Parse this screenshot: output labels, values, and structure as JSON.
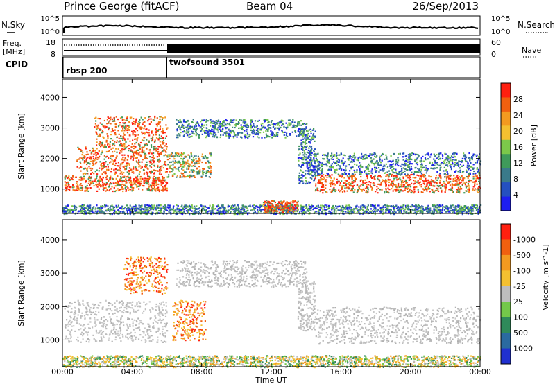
{
  "header": {
    "station": "Prince George (fitACF)",
    "beam": "Beam 04",
    "date": "26/Sep/2013"
  },
  "nsky": {
    "label": "N.Sky",
    "ticks": [
      "10^5",
      "10^0"
    ],
    "right_label": "N.Search",
    "right_ticks": [
      "10^5",
      "10^0"
    ]
  },
  "freq": {
    "label_top": "Freq.",
    "label_unit": "[MHz]",
    "ticks": [
      "18",
      "8"
    ],
    "right_ticks": [
      "60",
      "0"
    ],
    "right_label": "Nave"
  },
  "cpid": {
    "label": "CPID",
    "modes": [
      {
        "name": "rbsp 200",
        "start_hour": 0
      },
      {
        "name": "twofsound 3501",
        "start_hour": 6
      }
    ]
  },
  "chart_data": [
    {
      "type": "heatmap",
      "title": "",
      "xlabel": "Time UT",
      "ylabel": "Slant Range [km]",
      "xlim": [
        0,
        24
      ],
      "ylim": [
        200,
        4600
      ],
      "x_ticks": [
        "00:00",
        "04:00",
        "08:00",
        "12:00",
        "16:00",
        "20:00",
        "00:00"
      ],
      "y_ticks": [
        1000,
        2000,
        3000,
        4000
      ],
      "colorbar": {
        "label": "Power [dB]",
        "ticks": [
          4,
          8,
          12,
          16,
          20,
          24,
          28
        ],
        "colors": [
          "#1e1ef0",
          "#2550c0",
          "#3a7a8a",
          "#3f9a5a",
          "#7cc84a",
          "#f4c030",
          "#f39a20",
          "#f06010",
          "#ff2010"
        ]
      },
      "regions": [
        {
          "hours": [
            0.1,
            6.0
          ],
          "range_km": [
            950,
            1450
          ],
          "level": "high"
        },
        {
          "hours": [
            0.8,
            6.0
          ],
          "range_km": [
            1500,
            2400
          ],
          "level": "high"
        },
        {
          "hours": [
            1.8,
            6.0
          ],
          "range_km": [
            2400,
            3400
          ],
          "level": "high"
        },
        {
          "hours": [
            6.0,
            8.5
          ],
          "range_km": [
            1400,
            2200
          ],
          "level": "medium"
        },
        {
          "hours": [
            6.5,
            14.0
          ],
          "range_km": [
            2700,
            3300
          ],
          "level": "low"
        },
        {
          "hours": [
            13.5,
            14.5
          ],
          "range_km": [
            1200,
            3000
          ],
          "level": "low"
        },
        {
          "hours": [
            14.5,
            24.0
          ],
          "range_km": [
            900,
            1500
          ],
          "level": "high"
        },
        {
          "hours": [
            14.0,
            24.0
          ],
          "range_km": [
            1500,
            2200
          ],
          "level": "low"
        },
        {
          "hours": [
            0.0,
            24.0
          ],
          "range_km": [
            200,
            500
          ],
          "level": "low"
        },
        {
          "hours": [
            11.5,
            13.5
          ],
          "range_km": [
            250,
            650
          ],
          "level": "high"
        }
      ]
    },
    {
      "type": "heatmap",
      "title": "",
      "xlabel": "Time UT",
      "ylabel": "Slant Range [km]",
      "xlim": [
        0,
        24
      ],
      "ylim": [
        200,
        4600
      ],
      "x_ticks": [
        "00:00",
        "04:00",
        "08:00",
        "12:00",
        "16:00",
        "20:00",
        "00:00"
      ],
      "y_ticks": [
        1000,
        2000,
        3000,
        4000
      ],
      "colorbar": {
        "label": "Velocity [m s^-1]",
        "ticks": [
          "1000",
          "500",
          "100",
          "25",
          "-25",
          "-100",
          "-500",
          "-1000"
        ],
        "colors": [
          "#2030d0",
          "#2a6aa0",
          "#2f8a5a",
          "#74c84a",
          "#bdbdbd",
          "#f4c030",
          "#f39a20",
          "#f06010",
          "#ff2010"
        ]
      },
      "regions": [
        {
          "hours": [
            0.1,
            6.0
          ],
          "range_km": [
            950,
            2200
          ],
          "level": "ground"
        },
        {
          "hours": [
            3.5,
            6.0
          ],
          "range_km": [
            2400,
            3500
          ],
          "level": "negative"
        },
        {
          "hours": [
            6.3,
            8.2
          ],
          "range_km": [
            1000,
            2200
          ],
          "level": "negative"
        },
        {
          "hours": [
            6.5,
            14.0
          ],
          "range_km": [
            2600,
            3400
          ],
          "level": "ground"
        },
        {
          "hours": [
            13.5,
            14.5
          ],
          "range_km": [
            1300,
            2800
          ],
          "level": "ground"
        },
        {
          "hours": [
            14.5,
            24.0
          ],
          "range_km": [
            900,
            2000
          ],
          "level": "ground"
        },
        {
          "hours": [
            0.0,
            24.0
          ],
          "range_km": [
            200,
            550
          ],
          "level": "mixed"
        }
      ]
    }
  ]
}
